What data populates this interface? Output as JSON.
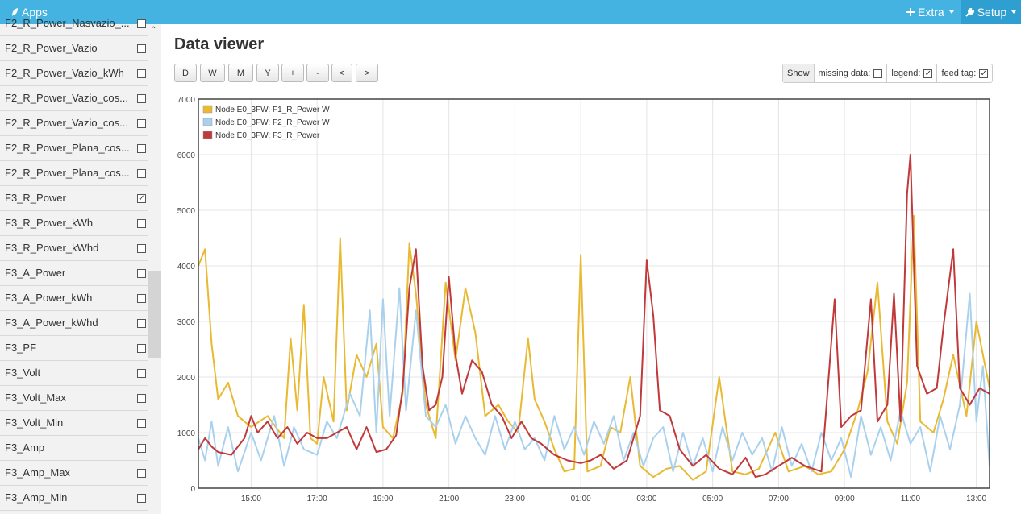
{
  "topbar": {
    "apps_label": "Apps",
    "extra_label": "Extra",
    "setup_label": "Setup"
  },
  "sidebar": {
    "items": [
      {
        "label": "F2_R_Power_Nasvazio_...",
        "checked": false
      },
      {
        "label": "F2_R_Power_Vazio",
        "checked": false
      },
      {
        "label": "F2_R_Power_Vazio_kWh",
        "checked": false
      },
      {
        "label": "F2_R_Power_Vazio_cos...",
        "checked": false
      },
      {
        "label": "F2_R_Power_Vazio_cos...",
        "checked": false
      },
      {
        "label": "F2_R_Power_Plana_cos...",
        "checked": false
      },
      {
        "label": "F2_R_Power_Plana_cos...",
        "checked": false
      },
      {
        "label": "F3_R_Power",
        "checked": true
      },
      {
        "label": "F3_R_Power_kWh",
        "checked": false
      },
      {
        "label": "F3_R_Power_kWhd",
        "checked": false
      },
      {
        "label": "F3_A_Power",
        "checked": false
      },
      {
        "label": "F3_A_Power_kWh",
        "checked": false
      },
      {
        "label": "F3_A_Power_kWhd",
        "checked": false
      },
      {
        "label": "F3_PF",
        "checked": false
      },
      {
        "label": "F3_Volt",
        "checked": false
      },
      {
        "label": "F3_Volt_Max",
        "checked": false
      },
      {
        "label": "F3_Volt_Min",
        "checked": false
      },
      {
        "label": "F3_Amp",
        "checked": false
      },
      {
        "label": "F3_Amp_Max",
        "checked": false
      },
      {
        "label": "F3_Amp_Min",
        "checked": false
      }
    ]
  },
  "main": {
    "title": "Data viewer",
    "buttons": [
      "D",
      "W",
      "M",
      "Y",
      "+",
      "-",
      "<",
      ">"
    ],
    "options": {
      "show_label": "Show",
      "missing_data_label": "missing data:",
      "missing_data_checked": false,
      "legend_label": "legend:",
      "legend_checked": true,
      "feed_tag_label": "feed tag:",
      "feed_tag_checked": true
    }
  },
  "chart_data": {
    "type": "line",
    "title": "",
    "xlabel": "",
    "ylabel": "",
    "ylim": [
      0,
      7000
    ],
    "y_ticks": [
      0,
      1000,
      2000,
      3000,
      4000,
      5000,
      6000,
      7000
    ],
    "x_range_hours": [
      13.4,
      37.4
    ],
    "x_ticks": [
      {
        "label": "15:00",
        "hour": 15
      },
      {
        "label": "17:00",
        "hour": 17
      },
      {
        "label": "19:00",
        "hour": 19
      },
      {
        "label": "21:00",
        "hour": 21
      },
      {
        "label": "23:00",
        "hour": 23
      },
      {
        "label": "01:00",
        "hour": 25
      },
      {
        "label": "03:00",
        "hour": 27
      },
      {
        "label": "05:00",
        "hour": 29
      },
      {
        "label": "07:00",
        "hour": 31
      },
      {
        "label": "09:00",
        "hour": 33
      },
      {
        "label": "11:00",
        "hour": 35
      },
      {
        "label": "13:00",
        "hour": 37
      }
    ],
    "legend_position": "top-left",
    "series": [
      {
        "name": "Node E0_3FW: F1_R_Power W",
        "color": "#e8b931",
        "points": [
          [
            13.4,
            4000
          ],
          [
            13.6,
            4300
          ],
          [
            13.8,
            2600
          ],
          [
            14.0,
            1600
          ],
          [
            14.3,
            1900
          ],
          [
            14.6,
            1300
          ],
          [
            15.0,
            1100
          ],
          [
            15.5,
            1300
          ],
          [
            16.0,
            900
          ],
          [
            16.2,
            2700
          ],
          [
            16.4,
            1400
          ],
          [
            16.6,
            3300
          ],
          [
            16.8,
            900
          ],
          [
            17.0,
            800
          ],
          [
            17.2,
            2000
          ],
          [
            17.5,
            1200
          ],
          [
            17.7,
            4500
          ],
          [
            17.9,
            1400
          ],
          [
            18.2,
            2400
          ],
          [
            18.5,
            2000
          ],
          [
            18.8,
            2600
          ],
          [
            19.0,
            1100
          ],
          [
            19.3,
            900
          ],
          [
            19.6,
            1700
          ],
          [
            19.8,
            4400
          ],
          [
            20.0,
            3500
          ],
          [
            20.3,
            1500
          ],
          [
            20.6,
            900
          ],
          [
            20.9,
            3700
          ],
          [
            21.2,
            2300
          ],
          [
            21.5,
            3600
          ],
          [
            21.8,
            2800
          ],
          [
            22.1,
            1300
          ],
          [
            22.5,
            1500
          ],
          [
            22.8,
            1200
          ],
          [
            23.1,
            1000
          ],
          [
            23.4,
            2700
          ],
          [
            23.6,
            1600
          ],
          [
            23.9,
            1200
          ],
          [
            24.2,
            700
          ],
          [
            24.5,
            300
          ],
          [
            24.8,
            350
          ],
          [
            25.0,
            4200
          ],
          [
            25.2,
            300
          ],
          [
            25.6,
            400
          ],
          [
            25.9,
            1100
          ],
          [
            26.2,
            1000
          ],
          [
            26.5,
            2000
          ],
          [
            26.8,
            400
          ],
          [
            27.2,
            200
          ],
          [
            27.6,
            350
          ],
          [
            28.0,
            400
          ],
          [
            28.4,
            150
          ],
          [
            28.8,
            300
          ],
          [
            29.2,
            2000
          ],
          [
            29.6,
            300
          ],
          [
            30.0,
            250
          ],
          [
            30.4,
            350
          ],
          [
            30.9,
            1000
          ],
          [
            31.3,
            300
          ],
          [
            31.8,
            400
          ],
          [
            32.2,
            250
          ],
          [
            32.6,
            300
          ],
          [
            33.0,
            700
          ],
          [
            33.4,
            1400
          ],
          [
            33.7,
            2100
          ],
          [
            34.0,
            3700
          ],
          [
            34.3,
            1200
          ],
          [
            34.6,
            800
          ],
          [
            34.9,
            1900
          ],
          [
            35.1,
            4900
          ],
          [
            35.3,
            1200
          ],
          [
            35.7,
            1000
          ],
          [
            36.0,
            1600
          ],
          [
            36.3,
            2400
          ],
          [
            36.7,
            1300
          ],
          [
            37.0,
            3000
          ],
          [
            37.4,
            1800
          ]
        ]
      },
      {
        "name": "Node E0_3FW: F2_R_Power W",
        "color": "#a9d1ee",
        "points": [
          [
            13.4,
            900
          ],
          [
            13.6,
            500
          ],
          [
            13.8,
            1200
          ],
          [
            14.0,
            400
          ],
          [
            14.3,
            1100
          ],
          [
            14.6,
            300
          ],
          [
            15.0,
            1000
          ],
          [
            15.3,
            500
          ],
          [
            15.7,
            1300
          ],
          [
            16.0,
            400
          ],
          [
            16.3,
            1100
          ],
          [
            16.6,
            700
          ],
          [
            17.0,
            600
          ],
          [
            17.3,
            1200
          ],
          [
            17.6,
            900
          ],
          [
            18.0,
            1700
          ],
          [
            18.3,
            1300
          ],
          [
            18.6,
            3200
          ],
          [
            18.8,
            1000
          ],
          [
            19.0,
            3400
          ],
          [
            19.2,
            1300
          ],
          [
            19.5,
            3600
          ],
          [
            19.7,
            1400
          ],
          [
            20.0,
            3200
          ],
          [
            20.3,
            1300
          ],
          [
            20.6,
            1100
          ],
          [
            20.9,
            1500
          ],
          [
            21.2,
            800
          ],
          [
            21.5,
            1300
          ],
          [
            21.8,
            900
          ],
          [
            22.1,
            600
          ],
          [
            22.4,
            1300
          ],
          [
            22.7,
            700
          ],
          [
            23.0,
            1200
          ],
          [
            23.3,
            700
          ],
          [
            23.6,
            900
          ],
          [
            23.9,
            500
          ],
          [
            24.2,
            1300
          ],
          [
            24.5,
            700
          ],
          [
            24.8,
            1100
          ],
          [
            25.1,
            600
          ],
          [
            25.4,
            1200
          ],
          [
            25.7,
            800
          ],
          [
            26.0,
            1300
          ],
          [
            26.3,
            500
          ],
          [
            26.6,
            1000
          ],
          [
            26.9,
            400
          ],
          [
            27.2,
            900
          ],
          [
            27.5,
            1100
          ],
          [
            27.8,
            300
          ],
          [
            28.1,
            1000
          ],
          [
            28.4,
            400
          ],
          [
            28.7,
            900
          ],
          [
            29.0,
            300
          ],
          [
            29.3,
            1100
          ],
          [
            29.6,
            500
          ],
          [
            29.9,
            1000
          ],
          [
            30.2,
            600
          ],
          [
            30.5,
            900
          ],
          [
            30.8,
            300
          ],
          [
            31.1,
            1100
          ],
          [
            31.4,
            400
          ],
          [
            31.7,
            800
          ],
          [
            32.0,
            300
          ],
          [
            32.3,
            1000
          ],
          [
            32.6,
            500
          ],
          [
            32.9,
            900
          ],
          [
            33.2,
            200
          ],
          [
            33.5,
            1300
          ],
          [
            33.8,
            600
          ],
          [
            34.1,
            1100
          ],
          [
            34.4,
            500
          ],
          [
            34.7,
            1400
          ],
          [
            35.0,
            800
          ],
          [
            35.3,
            1100
          ],
          [
            35.6,
            300
          ],
          [
            35.9,
            1300
          ],
          [
            36.2,
            700
          ],
          [
            36.5,
            1500
          ],
          [
            36.8,
            3500
          ],
          [
            37.0,
            1200
          ],
          [
            37.2,
            2200
          ],
          [
            37.4,
            400
          ]
        ]
      },
      {
        "name": "Node E0_3FW: F3_R_Power",
        "color": "#c0393b",
        "points": [
          [
            13.4,
            700
          ],
          [
            13.6,
            900
          ],
          [
            13.8,
            750
          ],
          [
            14.0,
            650
          ],
          [
            14.4,
            600
          ],
          [
            14.8,
            900
          ],
          [
            15.0,
            1300
          ],
          [
            15.2,
            1000
          ],
          [
            15.5,
            1200
          ],
          [
            15.8,
            900
          ],
          [
            16.1,
            1100
          ],
          [
            16.4,
            800
          ],
          [
            16.7,
            1000
          ],
          [
            17.0,
            900
          ],
          [
            17.3,
            900
          ],
          [
            17.6,
            1000
          ],
          [
            17.9,
            1100
          ],
          [
            18.2,
            700
          ],
          [
            18.5,
            1100
          ],
          [
            18.8,
            650
          ],
          [
            19.1,
            700
          ],
          [
            19.4,
            950
          ],
          [
            19.6,
            1800
          ],
          [
            19.8,
            3600
          ],
          [
            20.0,
            4300
          ],
          [
            20.2,
            2200
          ],
          [
            20.4,
            1400
          ],
          [
            20.6,
            1500
          ],
          [
            20.8,
            2000
          ],
          [
            21.0,
            3800
          ],
          [
            21.2,
            2400
          ],
          [
            21.4,
            1700
          ],
          [
            21.7,
            2300
          ],
          [
            22.0,
            2100
          ],
          [
            22.3,
            1500
          ],
          [
            22.6,
            1300
          ],
          [
            22.9,
            900
          ],
          [
            23.2,
            1200
          ],
          [
            23.5,
            900
          ],
          [
            23.8,
            800
          ],
          [
            24.2,
            600
          ],
          [
            24.6,
            500
          ],
          [
            25.0,
            450
          ],
          [
            25.3,
            500
          ],
          [
            25.6,
            600
          ],
          [
            26.0,
            350
          ],
          [
            26.4,
            500
          ],
          [
            26.8,
            1300
          ],
          [
            27.0,
            4100
          ],
          [
            27.2,
            3100
          ],
          [
            27.4,
            1400
          ],
          [
            27.7,
            1300
          ],
          [
            28.0,
            700
          ],
          [
            28.4,
            400
          ],
          [
            28.8,
            600
          ],
          [
            29.2,
            350
          ],
          [
            29.6,
            250
          ],
          [
            30.0,
            550
          ],
          [
            30.3,
            200
          ],
          [
            30.6,
            250
          ],
          [
            31.0,
            400
          ],
          [
            31.4,
            550
          ],
          [
            31.8,
            400
          ],
          [
            32.3,
            300
          ],
          [
            32.7,
            3400
          ],
          [
            32.9,
            1100
          ],
          [
            33.2,
            1300
          ],
          [
            33.5,
            1400
          ],
          [
            33.8,
            3400
          ],
          [
            34.0,
            1200
          ],
          [
            34.3,
            1500
          ],
          [
            34.5,
            3500
          ],
          [
            34.7,
            1200
          ],
          [
            34.9,
            5300
          ],
          [
            35.0,
            6000
          ],
          [
            35.2,
            2200
          ],
          [
            35.5,
            1700
          ],
          [
            35.8,
            1800
          ],
          [
            36.0,
            2900
          ],
          [
            36.3,
            4300
          ],
          [
            36.5,
            1800
          ],
          [
            36.8,
            1500
          ],
          [
            37.1,
            1800
          ],
          [
            37.4,
            1700
          ]
        ]
      }
    ]
  }
}
